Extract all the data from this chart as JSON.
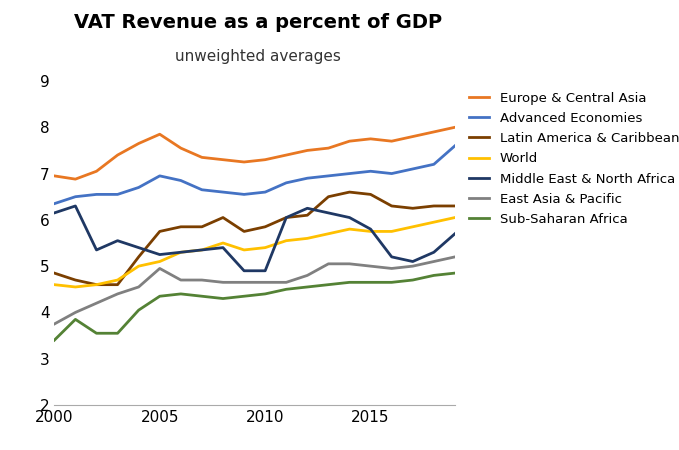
{
  "title": "VAT Revenue as a percent of GDP",
  "subtitle": "unweighted averages",
  "years": [
    2000,
    2001,
    2002,
    2003,
    2004,
    2005,
    2006,
    2007,
    2008,
    2009,
    2010,
    2011,
    2012,
    2013,
    2014,
    2015,
    2016,
    2017,
    2018,
    2019
  ],
  "series": {
    "Europe & Central Asia": {
      "color": "#E87722",
      "values": [
        6.95,
        6.88,
        7.05,
        7.4,
        7.65,
        7.85,
        7.55,
        7.35,
        7.3,
        7.25,
        7.3,
        7.4,
        7.5,
        7.55,
        7.7,
        7.75,
        7.7,
        7.8,
        7.9,
        8.0
      ]
    },
    "Advanced Economies": {
      "color": "#4472C4",
      "values": [
        6.35,
        6.5,
        6.55,
        6.55,
        6.7,
        6.95,
        6.85,
        6.65,
        6.6,
        6.55,
        6.6,
        6.8,
        6.9,
        6.95,
        7.0,
        7.05,
        7.0,
        7.1,
        7.2,
        7.6
      ]
    },
    "Latin America & Caribbean": {
      "color": "#7B3F00",
      "values": [
        4.85,
        4.7,
        4.6,
        4.6,
        5.2,
        5.75,
        5.85,
        5.85,
        6.05,
        5.75,
        5.85,
        6.05,
        6.1,
        6.5,
        6.6,
        6.55,
        6.3,
        6.25,
        6.3,
        6.3
      ]
    },
    "World": {
      "color": "#FFC000",
      "values": [
        4.6,
        4.55,
        4.6,
        4.7,
        5.0,
        5.1,
        5.3,
        5.35,
        5.5,
        5.35,
        5.4,
        5.55,
        5.6,
        5.7,
        5.8,
        5.75,
        5.75,
        5.85,
        5.95,
        6.05
      ]
    },
    "Middle East & North Africa": {
      "color": "#1F3864",
      "values": [
        6.15,
        6.3,
        5.35,
        5.55,
        5.4,
        5.25,
        5.3,
        5.35,
        5.4,
        4.9,
        4.9,
        6.05,
        6.25,
        6.15,
        6.05,
        5.8,
        5.2,
        5.1,
        5.3,
        5.7
      ]
    },
    "East Asia & Pacific": {
      "color": "#808080",
      "values": [
        3.75,
        4.0,
        4.2,
        4.4,
        4.55,
        4.95,
        4.7,
        4.7,
        4.65,
        4.65,
        4.65,
        4.65,
        4.8,
        5.05,
        5.05,
        5.0,
        4.95,
        5.0,
        5.1,
        5.2
      ]
    },
    "Sub-Saharan Africa": {
      "color": "#548235",
      "values": [
        3.4,
        3.85,
        3.55,
        3.55,
        4.05,
        4.35,
        4.4,
        4.35,
        4.3,
        4.35,
        4.4,
        4.5,
        4.55,
        4.6,
        4.65,
        4.65,
        4.65,
        4.7,
        4.8,
        4.85
      ]
    }
  },
  "ylim": [
    2,
    9
  ],
  "yticks": [
    2,
    3,
    4,
    5,
    6,
    7,
    8,
    9
  ],
  "xlim": [
    2000,
    2019
  ],
  "xticks": [
    2000,
    2005,
    2010,
    2015
  ],
  "title_fontsize": 14,
  "subtitle_fontsize": 11,
  "tick_fontsize": 11,
  "legend_fontsize": 9.5,
  "linewidth": 2.0,
  "background_color": "#FFFFFF"
}
